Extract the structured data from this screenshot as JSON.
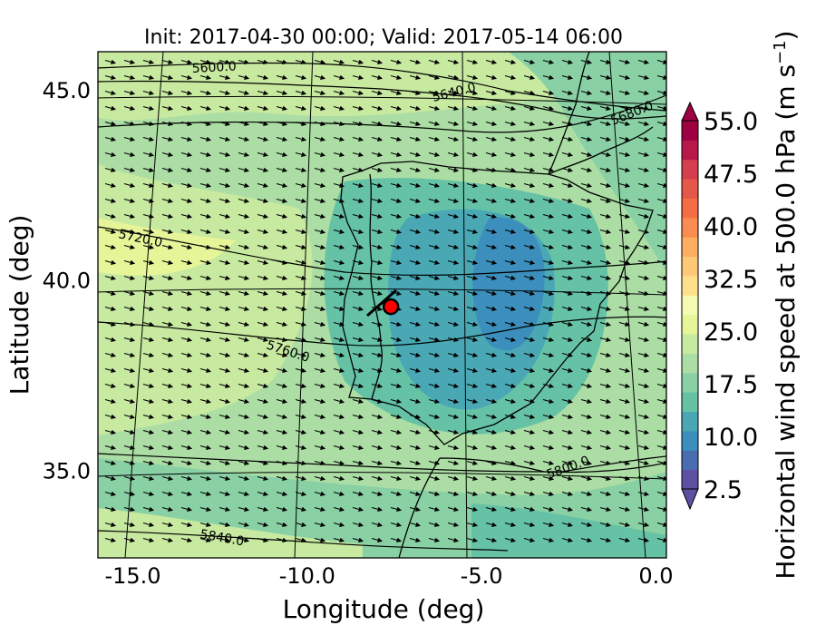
{
  "chart_data": {
    "type": "heatmap",
    "title": "Init: 2017-04-30 00:00; Valid: 2017-05-14 06:00",
    "xlabel": "Longitude (deg)",
    "ylabel": "Latitude (deg)",
    "xlim": [
      -16.0,
      0.3
    ],
    "ylim": [
      32.7,
      46.0
    ],
    "x_ticks": [
      "-15.0",
      "-10.0",
      "-5.0",
      "0.0"
    ],
    "x_tick_values": [
      -15.0,
      -10.0,
      -5.0,
      0.0
    ],
    "y_ticks": [
      "35.0",
      "40.0",
      "45.0"
    ],
    "y_tick_values": [
      35.0,
      40.0,
      45.0
    ],
    "colorbar": {
      "label_main": "Horizontal wind speed at 500.0 hPa (m s",
      "label_sup": "−1",
      "label_close": ")",
      "ticks": [
        "2.5",
        "10.0",
        "17.5",
        "25.0",
        "32.5",
        "40.0",
        "47.5",
        "55.0"
      ],
      "tick_values": [
        2.5,
        10.0,
        17.5,
        25.0,
        32.5,
        40.0,
        47.5,
        55.0
      ],
      "range": [
        2.5,
        55.0
      ],
      "extend": "both",
      "colors": [
        "#5e4fa2",
        "#4a6cb0",
        "#3c8fbc",
        "#4aa8b5",
        "#66c2a5",
        "#89d1a4",
        "#abdda4",
        "#c7e9a0",
        "#e6f598",
        "#f5fbb0",
        "#fee08b",
        "#fdc877",
        "#fdae61",
        "#f88c51",
        "#f46d43",
        "#e55749",
        "#d53e4f",
        "#b8194b",
        "#9e0142"
      ]
    },
    "geopotential_contours": {
      "units_note": "geopotential height contours (values printed on plot)",
      "levels": [
        5600.0,
        5640.0,
        5680.0,
        5720.0,
        5760.0,
        5800.0,
        5840.0
      ],
      "labels": [
        "5600.0",
        "5640.0",
        "5680.0",
        "5720.0",
        "5760.0",
        "5800.0",
        "5840.0"
      ]
    },
    "marker": {
      "lon": -7.6,
      "lat": 39.3,
      "color": "#ff0000"
    },
    "wind_vectors": "uniform westerly flow, ~WNW to ESE",
    "grid": true
  }
}
